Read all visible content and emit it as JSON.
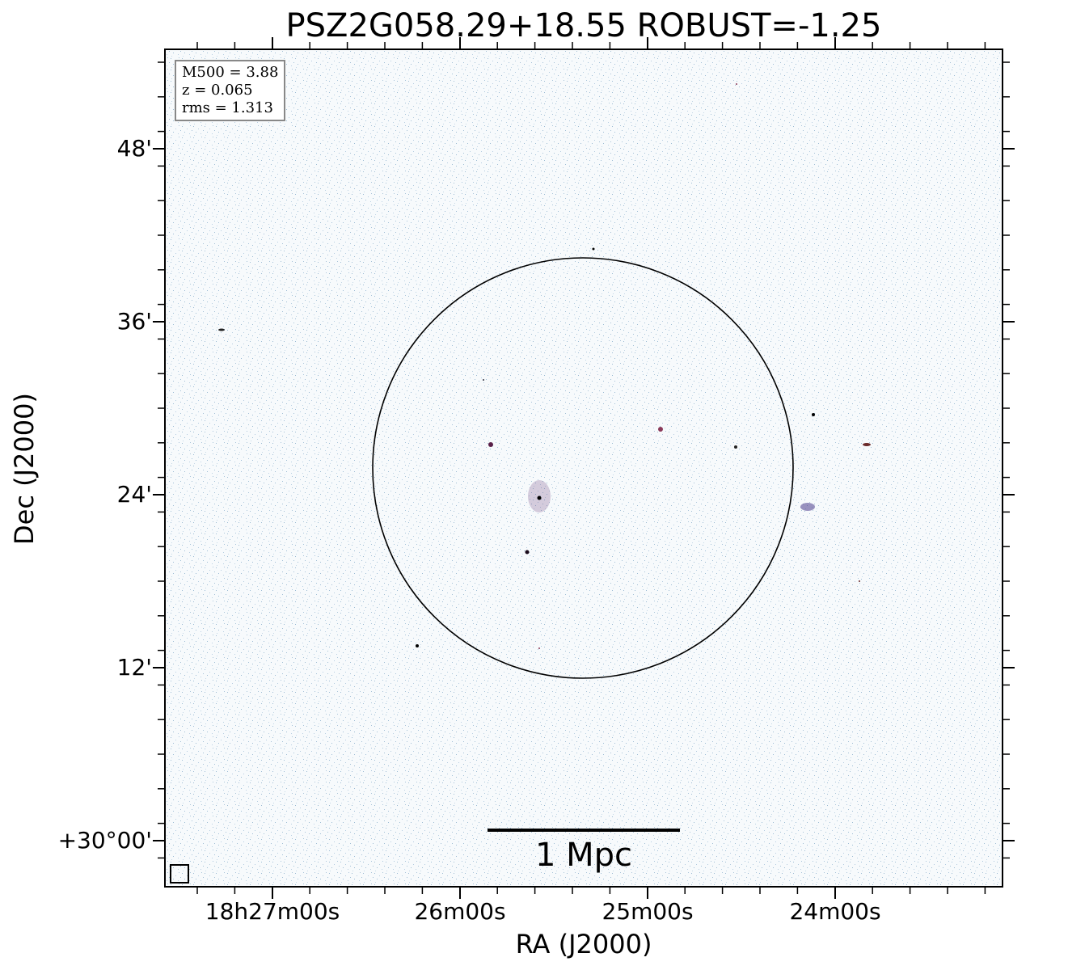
{
  "title": "PSZ2G058.29+18.55 ROBUST=-1.25",
  "axes": {
    "xlabel": "RA (J2000)",
    "ylabel": "Dec (J2000)",
    "xticks": [
      "18h27m00s",
      "26m00s",
      "25m00s",
      "24m00s"
    ],
    "yticks": [
      "48'",
      "36'",
      "24'",
      "12'",
      "+30°00'"
    ]
  },
  "info": {
    "m500": "M500 = 3.88",
    "z": "z = 0.065",
    "rms": "rms = 1.313"
  },
  "scalebar": {
    "label": "1 Mpc"
  },
  "colors": {
    "background": "#f7fafc",
    "noise": "#7fa9c8",
    "source": "#5a2048"
  }
}
